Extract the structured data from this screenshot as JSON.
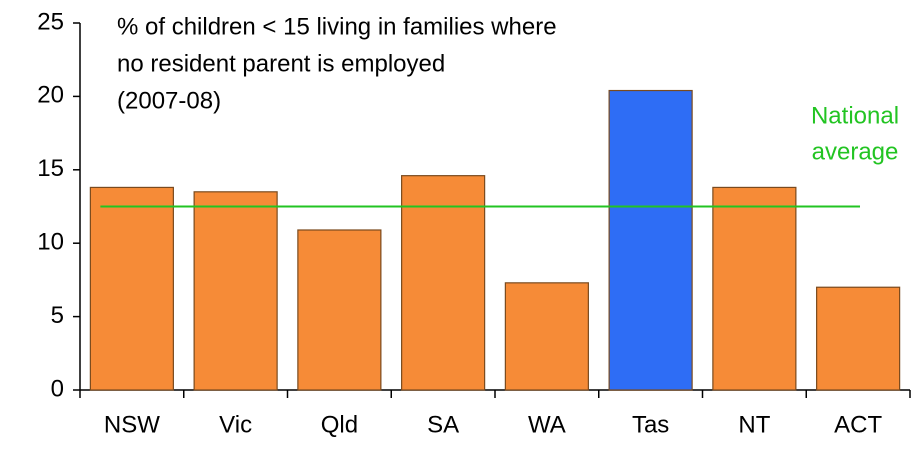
{
  "chart_data": {
    "type": "bar",
    "title": [
      "% of children < 15 living in families where",
      "no resident parent is employed",
      "(2007-08)"
    ],
    "categories": [
      "NSW",
      "Vic",
      "Qld",
      "SA",
      "WA",
      "Tas",
      "NT",
      "ACT"
    ],
    "values": [
      13.8,
      13.5,
      10.9,
      14.6,
      7.3,
      20.4,
      13.8,
      7.0
    ],
    "colors": [
      "#f68b37",
      "#f68b37",
      "#f68b37",
      "#f68b37",
      "#f68b37",
      "#2e6df5",
      "#f68b37",
      "#f68b37"
    ],
    "ylim": [
      0,
      25
    ],
    "yticks": [
      0,
      5,
      10,
      15,
      20,
      25
    ],
    "reference_line": {
      "label": [
        "National",
        "average"
      ],
      "value": 12.5,
      "color": "#22c422"
    }
  }
}
